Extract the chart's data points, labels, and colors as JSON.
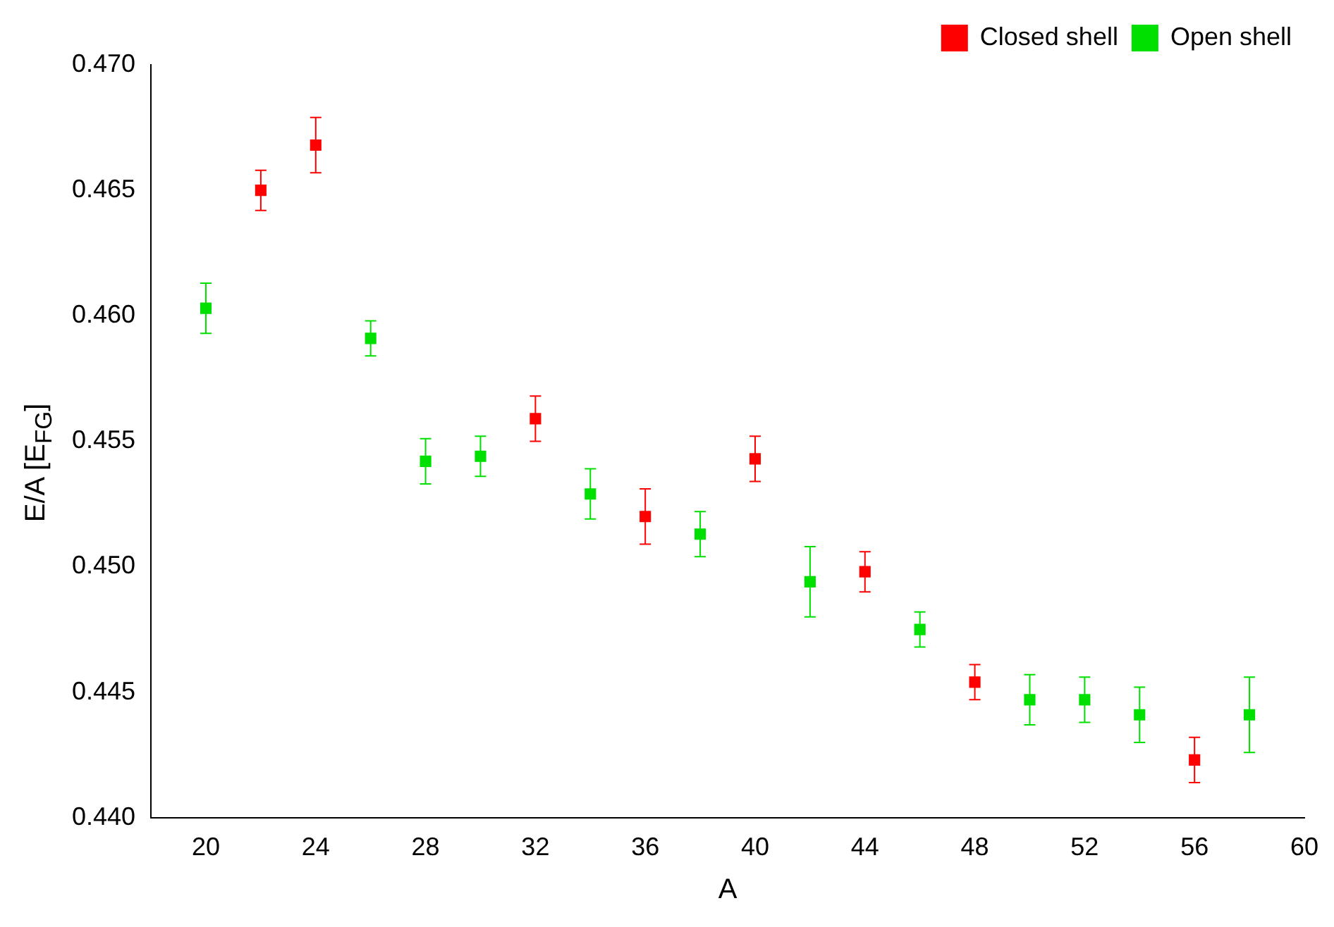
{
  "chart_data": {
    "type": "scatter",
    "xlabel": "A",
    "ylabel": "E/A [E$_{FG}$]",
    "xlim": [
      18,
      60
    ],
    "xticks": [
      20,
      24,
      28,
      32,
      36,
      40,
      44,
      48,
      52,
      56,
      60
    ],
    "ylim": [
      0.44,
      0.47
    ],
    "yticks": [
      {
        "value": 0.44,
        "label": "0.440"
      },
      {
        "value": 0.445,
        "label": "0.445"
      },
      {
        "value": 0.45,
        "label": "0.450"
      },
      {
        "value": 0.455,
        "label": "0.455"
      },
      {
        "value": 0.46,
        "label": "0.460"
      },
      {
        "value": 0.465,
        "label": "0.465"
      },
      {
        "value": 0.47,
        "label": "0.470"
      }
    ],
    "grid": false,
    "legend": "top right",
    "marker": "square",
    "series": [
      {
        "name": "Closed shell",
        "color": "#ff0000",
        "x": [
          22,
          24,
          32,
          36,
          40,
          44,
          48,
          56
        ],
        "values": [
          0.465,
          0.4668,
          0.4559,
          0.452,
          0.4543,
          0.4498,
          0.4454,
          0.4423
        ],
        "errors": [
          0.0008,
          0.0011,
          0.0009,
          0.0011,
          0.0009,
          0.0008,
          0.0007,
          0.0009
        ]
      },
      {
        "name": "Open shell",
        "color": "#00e000",
        "x": [
          20,
          26,
          28,
          30,
          34,
          38,
          42,
          46,
          50,
          52,
          54,
          58
        ],
        "values": [
          0.4603,
          0.4591,
          0.4542,
          0.4544,
          0.4529,
          0.4513,
          0.4494,
          0.4475,
          0.4447,
          0.4447,
          0.4441,
          0.4441
        ],
        "errors": [
          0.001,
          0.0007,
          0.0009,
          0.0008,
          0.001,
          0.0009,
          0.0014,
          0.0007,
          0.001,
          0.0009,
          0.0011,
          0.0015
        ]
      }
    ]
  }
}
